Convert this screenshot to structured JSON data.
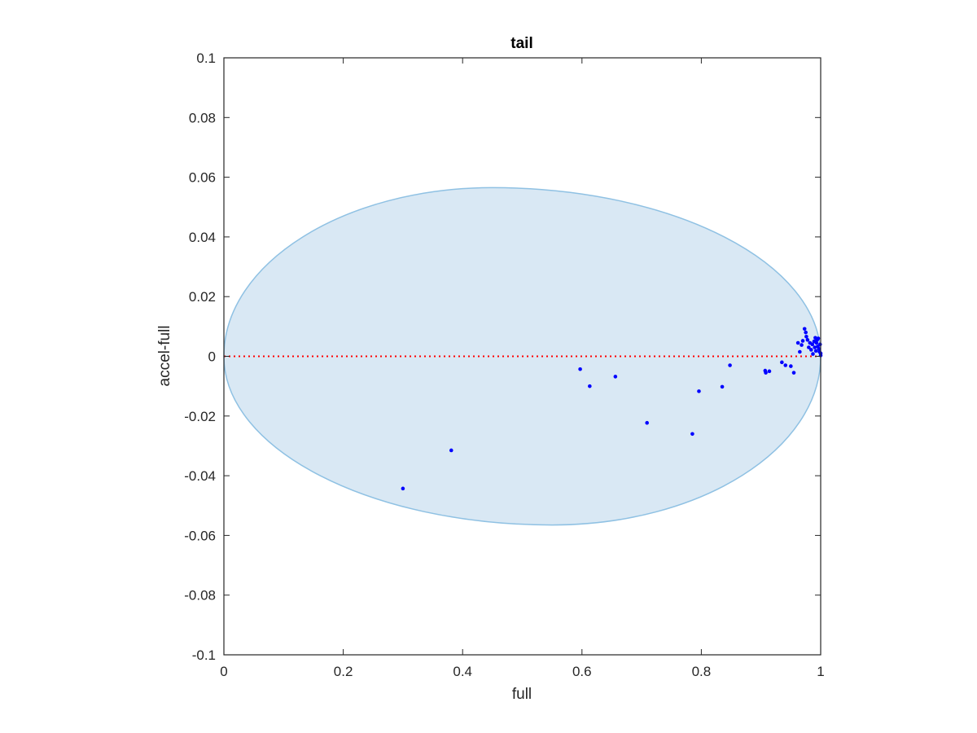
{
  "chart_data": {
    "type": "scatter",
    "title": "tail",
    "xlabel": "full",
    "ylabel": "accel-full",
    "xlim": [
      0,
      1
    ],
    "ylim": [
      -0.1,
      0.1
    ],
    "xticks": [
      0,
      0.2,
      0.4,
      0.6,
      0.8,
      1
    ],
    "xtick_labels": [
      "0",
      "0.2",
      "0.4",
      "0.6",
      "0.8",
      "1"
    ],
    "yticks": [
      -0.1,
      -0.08,
      -0.06,
      -0.04,
      -0.02,
      0,
      0.02,
      0.04,
      0.06,
      0.08,
      0.1
    ],
    "ytick_labels": [
      "-0.1",
      "-0.08",
      "-0.06",
      "-0.04",
      "-0.02",
      "0",
      "0.02",
      "0.04",
      "0.06",
      "0.08",
      "0.1"
    ],
    "grid": false,
    "reference_line": {
      "y": 0,
      "style": "dotted",
      "color": "#ff0000"
    },
    "region": {
      "shape": "ellipse",
      "fill": "#d9e8f4",
      "stroke": "#8fc1e3",
      "top_peak": {
        "x": 0.45,
        "y": 0.0565
      },
      "bottom_peak": {
        "x": 0.55,
        "y": -0.0565
      },
      "left_x": 0,
      "right_x": 1
    },
    "series": [
      {
        "color": "#0000ff",
        "points": [
          {
            "x": 0.3,
            "y": -0.0443
          },
          {
            "x": 0.381,
            "y": -0.0315
          },
          {
            "x": 0.597,
            "y": -0.0043
          },
          {
            "x": 0.613,
            "y": -0.01
          },
          {
            "x": 0.656,
            "y": -0.0068
          },
          {
            "x": 0.709,
            "y": -0.0223
          },
          {
            "x": 0.785,
            "y": -0.026
          },
          {
            "x": 0.796,
            "y": -0.0117
          },
          {
            "x": 0.835,
            "y": -0.0102
          },
          {
            "x": 0.848,
            "y": -0.003
          },
          {
            "x": 0.907,
            "y": -0.0048
          },
          {
            "x": 0.908,
            "y": -0.0055
          },
          {
            "x": 0.914,
            "y": -0.005
          },
          {
            "x": 0.935,
            "y": -0.002
          },
          {
            "x": 0.941,
            "y": -0.003
          },
          {
            "x": 0.95,
            "y": -0.0033
          },
          {
            "x": 0.955,
            "y": -0.0055
          },
          {
            "x": 0.962,
            "y": 0.0045
          },
          {
            "x": 0.965,
            "y": 0.0015
          },
          {
            "x": 0.968,
            "y": 0.0038
          },
          {
            "x": 0.97,
            "y": 0.0052
          },
          {
            "x": 0.973,
            "y": 0.0092
          },
          {
            "x": 0.975,
            "y": 0.008
          },
          {
            "x": 0.976,
            "y": 0.0066
          },
          {
            "x": 0.978,
            "y": 0.0055
          },
          {
            "x": 0.98,
            "y": 0.003
          },
          {
            "x": 0.982,
            "y": 0.0045
          },
          {
            "x": 0.984,
            "y": 0.0022
          },
          {
            "x": 0.986,
            "y": 0.004
          },
          {
            "x": 0.987,
            "y": 0.0008
          },
          {
            "x": 0.989,
            "y": 0.005
          },
          {
            "x": 0.99,
            "y": 0.003
          },
          {
            "x": 0.991,
            "y": 0.0062
          },
          {
            "x": 0.992,
            "y": 0.0018
          },
          {
            "x": 0.993,
            "y": 0.0045
          },
          {
            "x": 0.994,
            "y": 0.0055
          },
          {
            "x": 0.995,
            "y": 0.0033
          },
          {
            "x": 0.996,
            "y": 0.006
          },
          {
            "x": 0.997,
            "y": 0.0025
          },
          {
            "x": 0.998,
            "y": 0.0015
          },
          {
            "x": 0.999,
            "y": 0.004
          },
          {
            "x": 1.0,
            "y": 0.001
          },
          {
            "x": 1.0,
            "y": 0.0003
          }
        ]
      }
    ]
  }
}
